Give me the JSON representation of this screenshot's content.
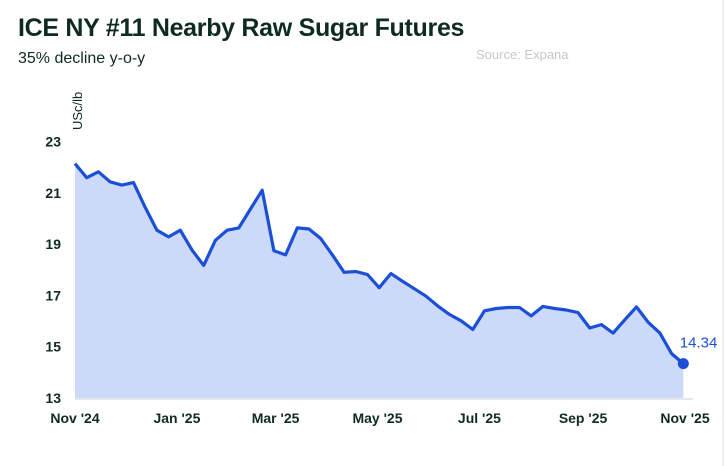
{
  "title": "ICE NY #11 Nearby Raw Sugar Futures",
  "subtitle": "35% decline y-o-y",
  "source": "Source: Expana",
  "colors": {
    "line": "#1a4fd6",
    "fill": "#cdd9f8",
    "text": "#0f2a22",
    "axis": "#e4e7ec"
  },
  "chart_data": {
    "type": "area",
    "title": "ICE NY #11 Nearby Raw Sugar Futures",
    "subtitle": "35% decline y-o-y",
    "ylabel": "USc/lb",
    "xlabel": "",
    "ylim": [
      13,
      23
    ],
    "yticks": [
      13,
      15,
      17,
      19,
      21,
      23
    ],
    "xlim": [
      "2024-11-01",
      "2025-11-01"
    ],
    "xticks": [
      {
        "date": "2024-11-01",
        "label": "Nov '24"
      },
      {
        "date": "2025-01-01",
        "label": "Jan '25"
      },
      {
        "date": "2025-03-01",
        "label": "Mar '25"
      },
      {
        "date": "2025-05-01",
        "label": "May '25"
      },
      {
        "date": "2025-07-01",
        "label": "Jul '25"
      },
      {
        "date": "2025-09-01",
        "label": "Sep '25"
      },
      {
        "date": "2025-11-01",
        "label": "Nov '25"
      }
    ],
    "grid": false,
    "end_label": "14.34",
    "x": [
      "2024-11-01",
      "2024-11-08",
      "2024-11-15",
      "2024-11-22",
      "2024-11-29",
      "2024-12-06",
      "2024-12-13",
      "2024-12-20",
      "2024-12-27",
      "2025-01-03",
      "2025-01-10",
      "2025-01-17",
      "2025-01-24",
      "2025-01-31",
      "2025-02-07",
      "2025-02-14",
      "2025-02-21",
      "2025-02-28",
      "2025-03-07",
      "2025-03-14",
      "2025-03-21",
      "2025-03-28",
      "2025-04-04",
      "2025-04-11",
      "2025-04-18",
      "2025-04-25",
      "2025-05-02",
      "2025-05-09",
      "2025-05-16",
      "2025-05-23",
      "2025-05-30",
      "2025-06-06",
      "2025-06-13",
      "2025-06-20",
      "2025-06-27",
      "2025-07-04",
      "2025-07-11",
      "2025-07-18",
      "2025-07-25",
      "2025-08-01",
      "2025-08-08",
      "2025-08-15",
      "2025-08-22",
      "2025-08-29",
      "2025-09-05",
      "2025-09-12",
      "2025-09-19",
      "2025-09-26",
      "2025-10-03",
      "2025-10-10",
      "2025-10-17",
      "2025-10-24",
      "2025-10-31"
    ],
    "values": [
      22.14,
      21.59,
      21.82,
      21.43,
      21.3,
      21.4,
      20.43,
      19.54,
      19.28,
      19.54,
      18.77,
      18.17,
      19.15,
      19.54,
      19.63,
      20.37,
      21.1,
      18.74,
      18.58,
      19.63,
      19.59,
      19.22,
      18.58,
      17.9,
      17.93,
      17.81,
      17.3,
      17.85,
      17.55,
      17.26,
      16.97,
      16.59,
      16.26,
      16.01,
      15.67,
      16.4,
      16.49,
      16.53,
      16.53,
      16.2,
      16.57,
      16.49,
      16.43,
      16.33,
      15.73,
      15.86,
      15.53,
      16.05,
      16.55,
      15.95,
      15.53,
      14.73,
      14.34
    ]
  }
}
